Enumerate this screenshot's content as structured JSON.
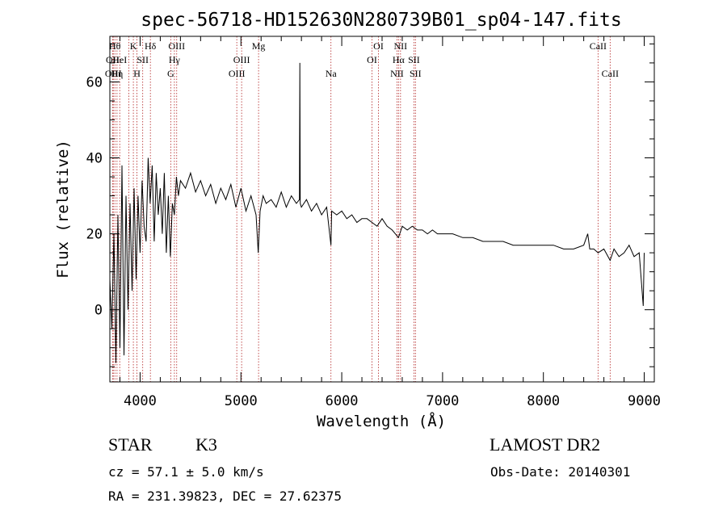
{
  "chart_data": {
    "type": "line",
    "title": "spec-56718-HD152630N280739B01_sp04-147.fits",
    "xlabel": "Wavelength (Å)",
    "ylabel": "Flux (relative)",
    "xlim": [
      3700,
      9100
    ],
    "ylim": [
      -19,
      72
    ],
    "x_ticks": [
      {
        "value": 4000,
        "label": "4000"
      },
      {
        "value": 5000,
        "label": "5000"
      },
      {
        "value": 6000,
        "label": "6000"
      },
      {
        "value": 7000,
        "label": "7000"
      },
      {
        "value": 8000,
        "label": "8000"
      },
      {
        "value": 9000,
        "label": "9000"
      }
    ],
    "y_ticks": [
      {
        "value": 0,
        "label": "0"
      },
      {
        "value": 20,
        "label": "20"
      },
      {
        "value": 40,
        "label": "40"
      },
      {
        "value": 60,
        "label": "60"
      }
    ],
    "grid": false,
    "series": [
      {
        "line_color": "#000000",
        "x": [
          3700,
          3720,
          3740,
          3760,
          3780,
          3800,
          3820,
          3840,
          3860,
          3880,
          3900,
          3920,
          3940,
          3960,
          3980,
          4000,
          4020,
          4040,
          4060,
          4080,
          4100,
          4120,
          4140,
          4160,
          4180,
          4200,
          4220,
          4240,
          4260,
          4280,
          4300,
          4320,
          4340,
          4360,
          4380,
          4400,
          4450,
          4500,
          4550,
          4600,
          4650,
          4700,
          4750,
          4800,
          4850,
          4900,
          4950,
          5000,
          5050,
          5100,
          5150,
          5172,
          5190,
          5220,
          5250,
          5300,
          5350,
          5400,
          5450,
          5500,
          5550,
          5580,
          5584,
          5588,
          5600,
          5650,
          5700,
          5750,
          5800,
          5850,
          5893,
          5900,
          5950,
          6000,
          6050,
          6100,
          6150,
          6200,
          6250,
          6300,
          6350,
          6400,
          6450,
          6500,
          6563,
          6600,
          6650,
          6700,
          6750,
          6800,
          6850,
          6900,
          6950,
          7000,
          7100,
          7200,
          7300,
          7400,
          7500,
          7600,
          7700,
          7800,
          7900,
          8000,
          8100,
          8200,
          8300,
          8400,
          8440,
          8460,
          8500,
          8542,
          8600,
          8662,
          8700,
          8750,
          8800,
          8850,
          8900,
          8950,
          8990,
          9000
        ],
        "y": [
          8,
          -5,
          20,
          -14,
          25,
          -10,
          38,
          -12,
          30,
          0,
          28,
          5,
          32,
          8,
          30,
          15,
          34,
          22,
          18,
          40,
          28,
          38,
          18,
          36,
          25,
          32,
          20,
          36,
          15,
          30,
          14,
          28,
          25,
          35,
          30,
          34,
          32,
          36,
          31,
          34,
          30,
          33,
          28,
          32,
          29,
          33,
          27,
          32,
          26,
          30,
          25,
          15,
          26,
          30,
          28,
          29,
          27,
          31,
          27,
          30,
          28,
          29,
          65,
          28,
          27,
          29,
          26,
          28,
          25,
          27,
          17,
          26,
          25,
          26,
          24,
          25,
          23,
          24,
          24,
          23,
          22,
          24,
          22,
          21,
          19,
          22,
          21,
          22,
          21,
          21,
          20,
          21,
          20,
          20,
          20,
          19,
          19,
          18,
          18,
          18,
          17,
          17,
          17,
          17,
          17,
          16,
          16,
          17,
          20,
          16,
          16,
          15,
          16,
          13,
          16,
          14,
          15,
          17,
          14,
          15,
          1,
          15
        ]
      }
    ],
    "lines": [
      {
        "x": 3727,
        "label": "OII",
        "row": 1
      },
      {
        "x": 3734,
        "label": "OIII",
        "row": 2
      },
      {
        "x": 3750,
        "label": "Hθ",
        "row": 0
      },
      {
        "x": 3771,
        "label": "Hη",
        "row": 2
      },
      {
        "x": 3798,
        "label": "HeI",
        "row": 1
      },
      {
        "x": 3889,
        "label": "",
        "row": -1
      },
      {
        "x": 3933,
        "label": "K",
        "row": 0
      },
      {
        "x": 3969,
        "label": "H",
        "row": 2
      },
      {
        "x": 4026,
        "label": "SII",
        "row": 1
      },
      {
        "x": 4102,
        "label": "Hδ",
        "row": 0
      },
      {
        "x": 4304,
        "label": "G",
        "row": 2
      },
      {
        "x": 4340,
        "label": "Hγ",
        "row": 1
      },
      {
        "x": 4363,
        "label": "OIII",
        "row": 0
      },
      {
        "x": 4959,
        "label": "OIII",
        "row": 2
      },
      {
        "x": 5007,
        "label": "OIII",
        "row": 1
      },
      {
        "x": 5175,
        "label": "Mg",
        "row": 0
      },
      {
        "x": 5893,
        "label": "Na",
        "row": 2
      },
      {
        "x": 6300,
        "label": "OI",
        "row": 1
      },
      {
        "x": 6364,
        "label": "OI",
        "row": 0
      },
      {
        "x": 6548,
        "label": "NII",
        "row": 2
      },
      {
        "x": 6563,
        "label": "Hα",
        "row": 1
      },
      {
        "x": 6583,
        "label": "NII",
        "row": 0
      },
      {
        "x": 6716,
        "label": "SII",
        "row": 1
      },
      {
        "x": 6731,
        "label": "SII",
        "row": 2
      },
      {
        "x": 8542,
        "label": "CaII",
        "row": 0
      },
      {
        "x": 8662,
        "label": "CaII",
        "row": 2
      }
    ]
  },
  "info": {
    "object_class": "STAR",
    "subclass": "K3",
    "survey": "LAMOST DR2",
    "velocity": "cz = 57.1 ± 5.0 km/s",
    "obs_date": "Obs-Date: 20140301",
    "coords": "RA = 231.39823, DEC =  27.62375"
  }
}
